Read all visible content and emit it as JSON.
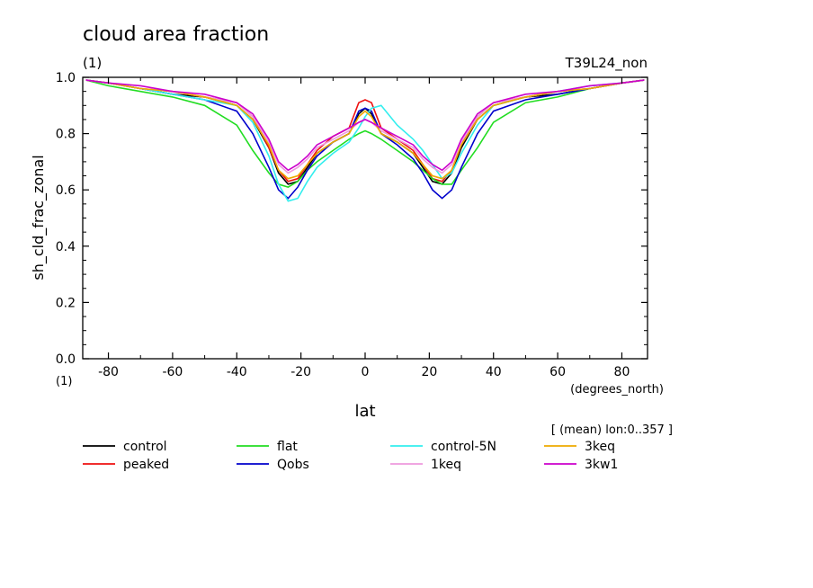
{
  "chart_data": {
    "type": "line",
    "title": "cloud area fraction",
    "units_label": "(1)",
    "run_label": "T39L24_non",
    "ylabel": "sh_cld_frac_zonal",
    "y_units": "(1)",
    "xlabel": "lat",
    "x_units": "(degrees_north)",
    "subtitle": "[ (mean) lon:0..357 ]",
    "xlim": [
      -88,
      88
    ],
    "ylim": [
      0,
      1
    ],
    "xticks": [
      -80,
      -60,
      -40,
      -20,
      0,
      20,
      40,
      60,
      80
    ],
    "yticks": [
      0.0,
      0.2,
      0.4,
      0.6,
      0.8,
      1.0
    ],
    "x": [
      -87,
      -80,
      -70,
      -60,
      -50,
      -40,
      -35,
      -30,
      -27,
      -24,
      -21,
      -18,
      -15,
      -10,
      -5,
      -2,
      0,
      2,
      5,
      10,
      15,
      18,
      21,
      24,
      27,
      30,
      35,
      40,
      50,
      60,
      70,
      80,
      87
    ],
    "series": [
      {
        "name": "control",
        "color": "#000000",
        "values": [
          0.99,
          0.98,
          0.96,
          0.94,
          0.93,
          0.9,
          0.85,
          0.75,
          0.66,
          0.62,
          0.63,
          0.68,
          0.73,
          0.77,
          0.8,
          0.87,
          0.89,
          0.87,
          0.8,
          0.77,
          0.73,
          0.68,
          0.63,
          0.62,
          0.66,
          0.75,
          0.85,
          0.9,
          0.93,
          0.94,
          0.96,
          0.98,
          0.99
        ]
      },
      {
        "name": "peaked",
        "color": "#ee1111",
        "values": [
          0.99,
          0.98,
          0.96,
          0.95,
          0.93,
          0.91,
          0.86,
          0.75,
          0.67,
          0.63,
          0.64,
          0.69,
          0.74,
          0.79,
          0.82,
          0.91,
          0.92,
          0.91,
          0.82,
          0.78,
          0.74,
          0.69,
          0.64,
          0.63,
          0.67,
          0.76,
          0.86,
          0.91,
          0.93,
          0.95,
          0.96,
          0.98,
          0.99
        ]
      },
      {
        "name": "flat",
        "color": "#22dd22",
        "values": [
          0.99,
          0.97,
          0.95,
          0.93,
          0.9,
          0.83,
          0.74,
          0.66,
          0.62,
          0.61,
          0.63,
          0.67,
          0.7,
          0.74,
          0.78,
          0.8,
          0.81,
          0.8,
          0.78,
          0.74,
          0.7,
          0.67,
          0.64,
          0.62,
          0.62,
          0.67,
          0.75,
          0.84,
          0.91,
          0.93,
          0.96,
          0.98,
          0.99
        ]
      },
      {
        "name": "Qobs",
        "color": "#0000cc",
        "values": [
          0.99,
          0.98,
          0.96,
          0.94,
          0.92,
          0.88,
          0.8,
          0.68,
          0.6,
          0.57,
          0.61,
          0.67,
          0.72,
          0.77,
          0.8,
          0.88,
          0.89,
          0.88,
          0.8,
          0.76,
          0.71,
          0.66,
          0.6,
          0.57,
          0.6,
          0.68,
          0.8,
          0.88,
          0.92,
          0.94,
          0.96,
          0.98,
          0.99
        ]
      },
      {
        "name": "control-5N",
        "color": "#33eeee",
        "values": [
          0.99,
          0.98,
          0.96,
          0.94,
          0.92,
          0.9,
          0.84,
          0.72,
          0.62,
          0.56,
          0.57,
          0.63,
          0.68,
          0.73,
          0.77,
          0.82,
          0.86,
          0.89,
          0.9,
          0.83,
          0.78,
          0.74,
          0.69,
          0.64,
          0.66,
          0.73,
          0.83,
          0.9,
          0.93,
          0.95,
          0.97,
          0.98,
          0.99
        ]
      },
      {
        "name": "1keq",
        "color": "#ee99dd",
        "values": [
          0.99,
          0.98,
          0.96,
          0.95,
          0.93,
          0.91,
          0.86,
          0.77,
          0.69,
          0.66,
          0.68,
          0.71,
          0.75,
          0.78,
          0.81,
          0.84,
          0.85,
          0.84,
          0.81,
          0.78,
          0.75,
          0.71,
          0.68,
          0.66,
          0.69,
          0.77,
          0.86,
          0.91,
          0.93,
          0.95,
          0.96,
          0.98,
          0.99
        ]
      },
      {
        "name": "3keq",
        "color": "#eeaa00",
        "values": [
          0.99,
          0.98,
          0.96,
          0.95,
          0.93,
          0.9,
          0.85,
          0.76,
          0.67,
          0.64,
          0.65,
          0.69,
          0.73,
          0.77,
          0.8,
          0.86,
          0.88,
          0.86,
          0.8,
          0.77,
          0.73,
          0.69,
          0.65,
          0.64,
          0.67,
          0.76,
          0.85,
          0.9,
          0.93,
          0.95,
          0.96,
          0.98,
          0.99
        ]
      },
      {
        "name": "3kw1",
        "color": "#cc00cc",
        "values": [
          0.99,
          0.98,
          0.97,
          0.95,
          0.94,
          0.91,
          0.87,
          0.78,
          0.7,
          0.67,
          0.69,
          0.72,
          0.76,
          0.79,
          0.82,
          0.84,
          0.85,
          0.84,
          0.82,
          0.79,
          0.76,
          0.72,
          0.69,
          0.67,
          0.7,
          0.78,
          0.87,
          0.91,
          0.94,
          0.95,
          0.97,
          0.98,
          0.99
        ]
      }
    ],
    "grid": false,
    "legend_position": "bottom"
  }
}
